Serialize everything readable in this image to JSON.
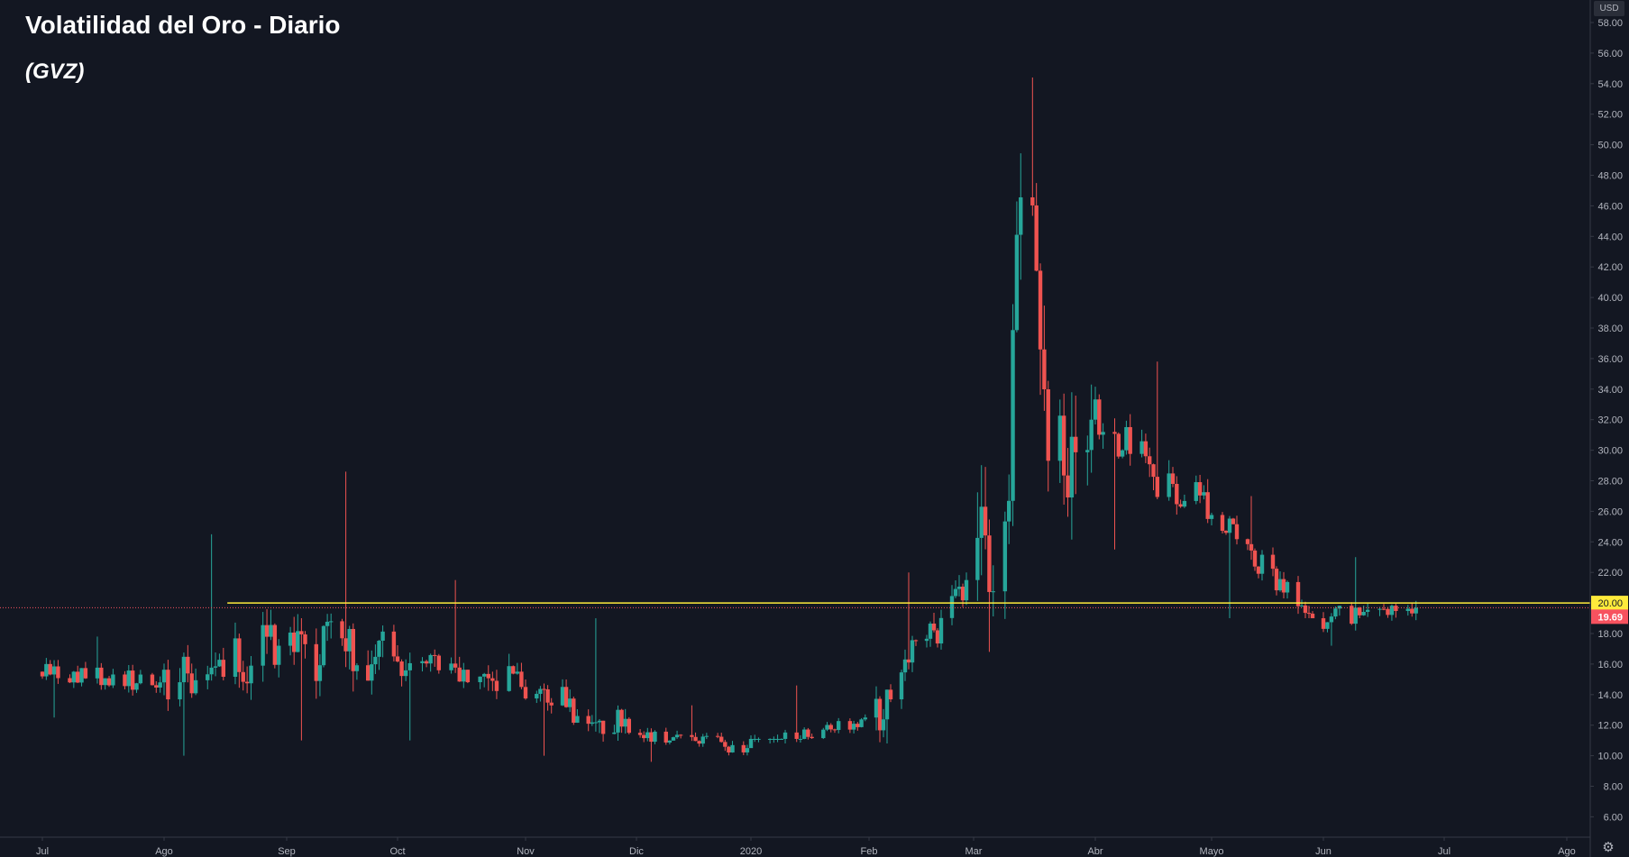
{
  "header": {
    "title": "Volatilidad del Oro - Diario",
    "subtitle": "(GVZ)"
  },
  "price_axis": {
    "currency": "USD",
    "settings_icon": "gear-icon"
  },
  "colors": {
    "background": "#131722",
    "up": "#26a69a",
    "down": "#ef5350",
    "level_line": "#ffeb3b",
    "last_price": "#f7525f",
    "axis_text": "#b2b5be",
    "axis_line": "#363a45"
  },
  "chart_data": {
    "type": "candlestick",
    "title": "Volatilidad del Oro - Diario",
    "subtitle": "(GVZ)",
    "currency": "USD",
    "ylim": [
      5,
      59
    ],
    "y_ticks": [
      6,
      8,
      10,
      12,
      14,
      16,
      18,
      20,
      22,
      24,
      26,
      28,
      30,
      32,
      34,
      36,
      38,
      40,
      42,
      44,
      46,
      48,
      50,
      52,
      54,
      56,
      58
    ],
    "x_ticks": [
      "Jul",
      "Ago",
      "Sep",
      "Oct",
      "Nov",
      "Dic",
      "2020",
      "Feb",
      "Mar",
      "Abr",
      "Mayo",
      "Jun",
      "Jul",
      "Ago"
    ],
    "tick_months": [
      "2019-07-01",
      "2019-08-01",
      "2019-09-01",
      "2019-10-01",
      "2019-11-01",
      "2019-12-01",
      "2020-01-01",
      "2020-02-01",
      "2020-03-01",
      "2020-04-01",
      "2020-05-01",
      "2020-06-01",
      "2020-07-01",
      "2020-08-01"
    ],
    "horizontal_level": {
      "value": 20.0,
      "label": "20.00",
      "start": "2019-08-17"
    },
    "last_price": {
      "value": 19.69,
      "label": "19.69"
    },
    "grid": false,
    "legend": "none",
    "monthly_ranges": [
      {
        "month": "2019-07",
        "low": 12.5,
        "high": 17.8,
        "open": 15.5,
        "close": 14.8
      },
      {
        "month": "2019-08",
        "low": 10.0,
        "high": 24.5,
        "open": 14.8,
        "close": 17.2
      },
      {
        "month": "2019-09",
        "low": 11.0,
        "high": 28.6,
        "open": 17.2,
        "close": 16.5
      },
      {
        "month": "2019-10",
        "low": 11.0,
        "high": 21.5,
        "open": 16.5,
        "close": 14.5
      },
      {
        "month": "2019-11",
        "low": 10.0,
        "high": 19.0,
        "open": 14.5,
        "close": 11.5
      },
      {
        "month": "2019-12",
        "low": 9.6,
        "high": 13.3,
        "open": 11.5,
        "close": 10.5
      },
      {
        "month": "2020-01",
        "low": 10.8,
        "high": 14.6,
        "open": 10.5,
        "close": 12.5
      },
      {
        "month": "2020-02",
        "low": 10.8,
        "high": 22.0,
        "open": 12.5,
        "close": 21.5
      },
      {
        "month": "2020-03",
        "low": 16.8,
        "high": 54.4,
        "open": 21.5,
        "close": 32.0
      },
      {
        "month": "2020-04",
        "low": 23.5,
        "high": 35.8,
        "open": 32.0,
        "close": 25.5
      },
      {
        "month": "2020-05",
        "low": 19.0,
        "high": 27.0,
        "open": 25.5,
        "close": 19.0
      },
      {
        "month": "2020-06",
        "low": 17.2,
        "high": 23.0,
        "open": 19.0,
        "close": 19.69
      }
    ]
  }
}
